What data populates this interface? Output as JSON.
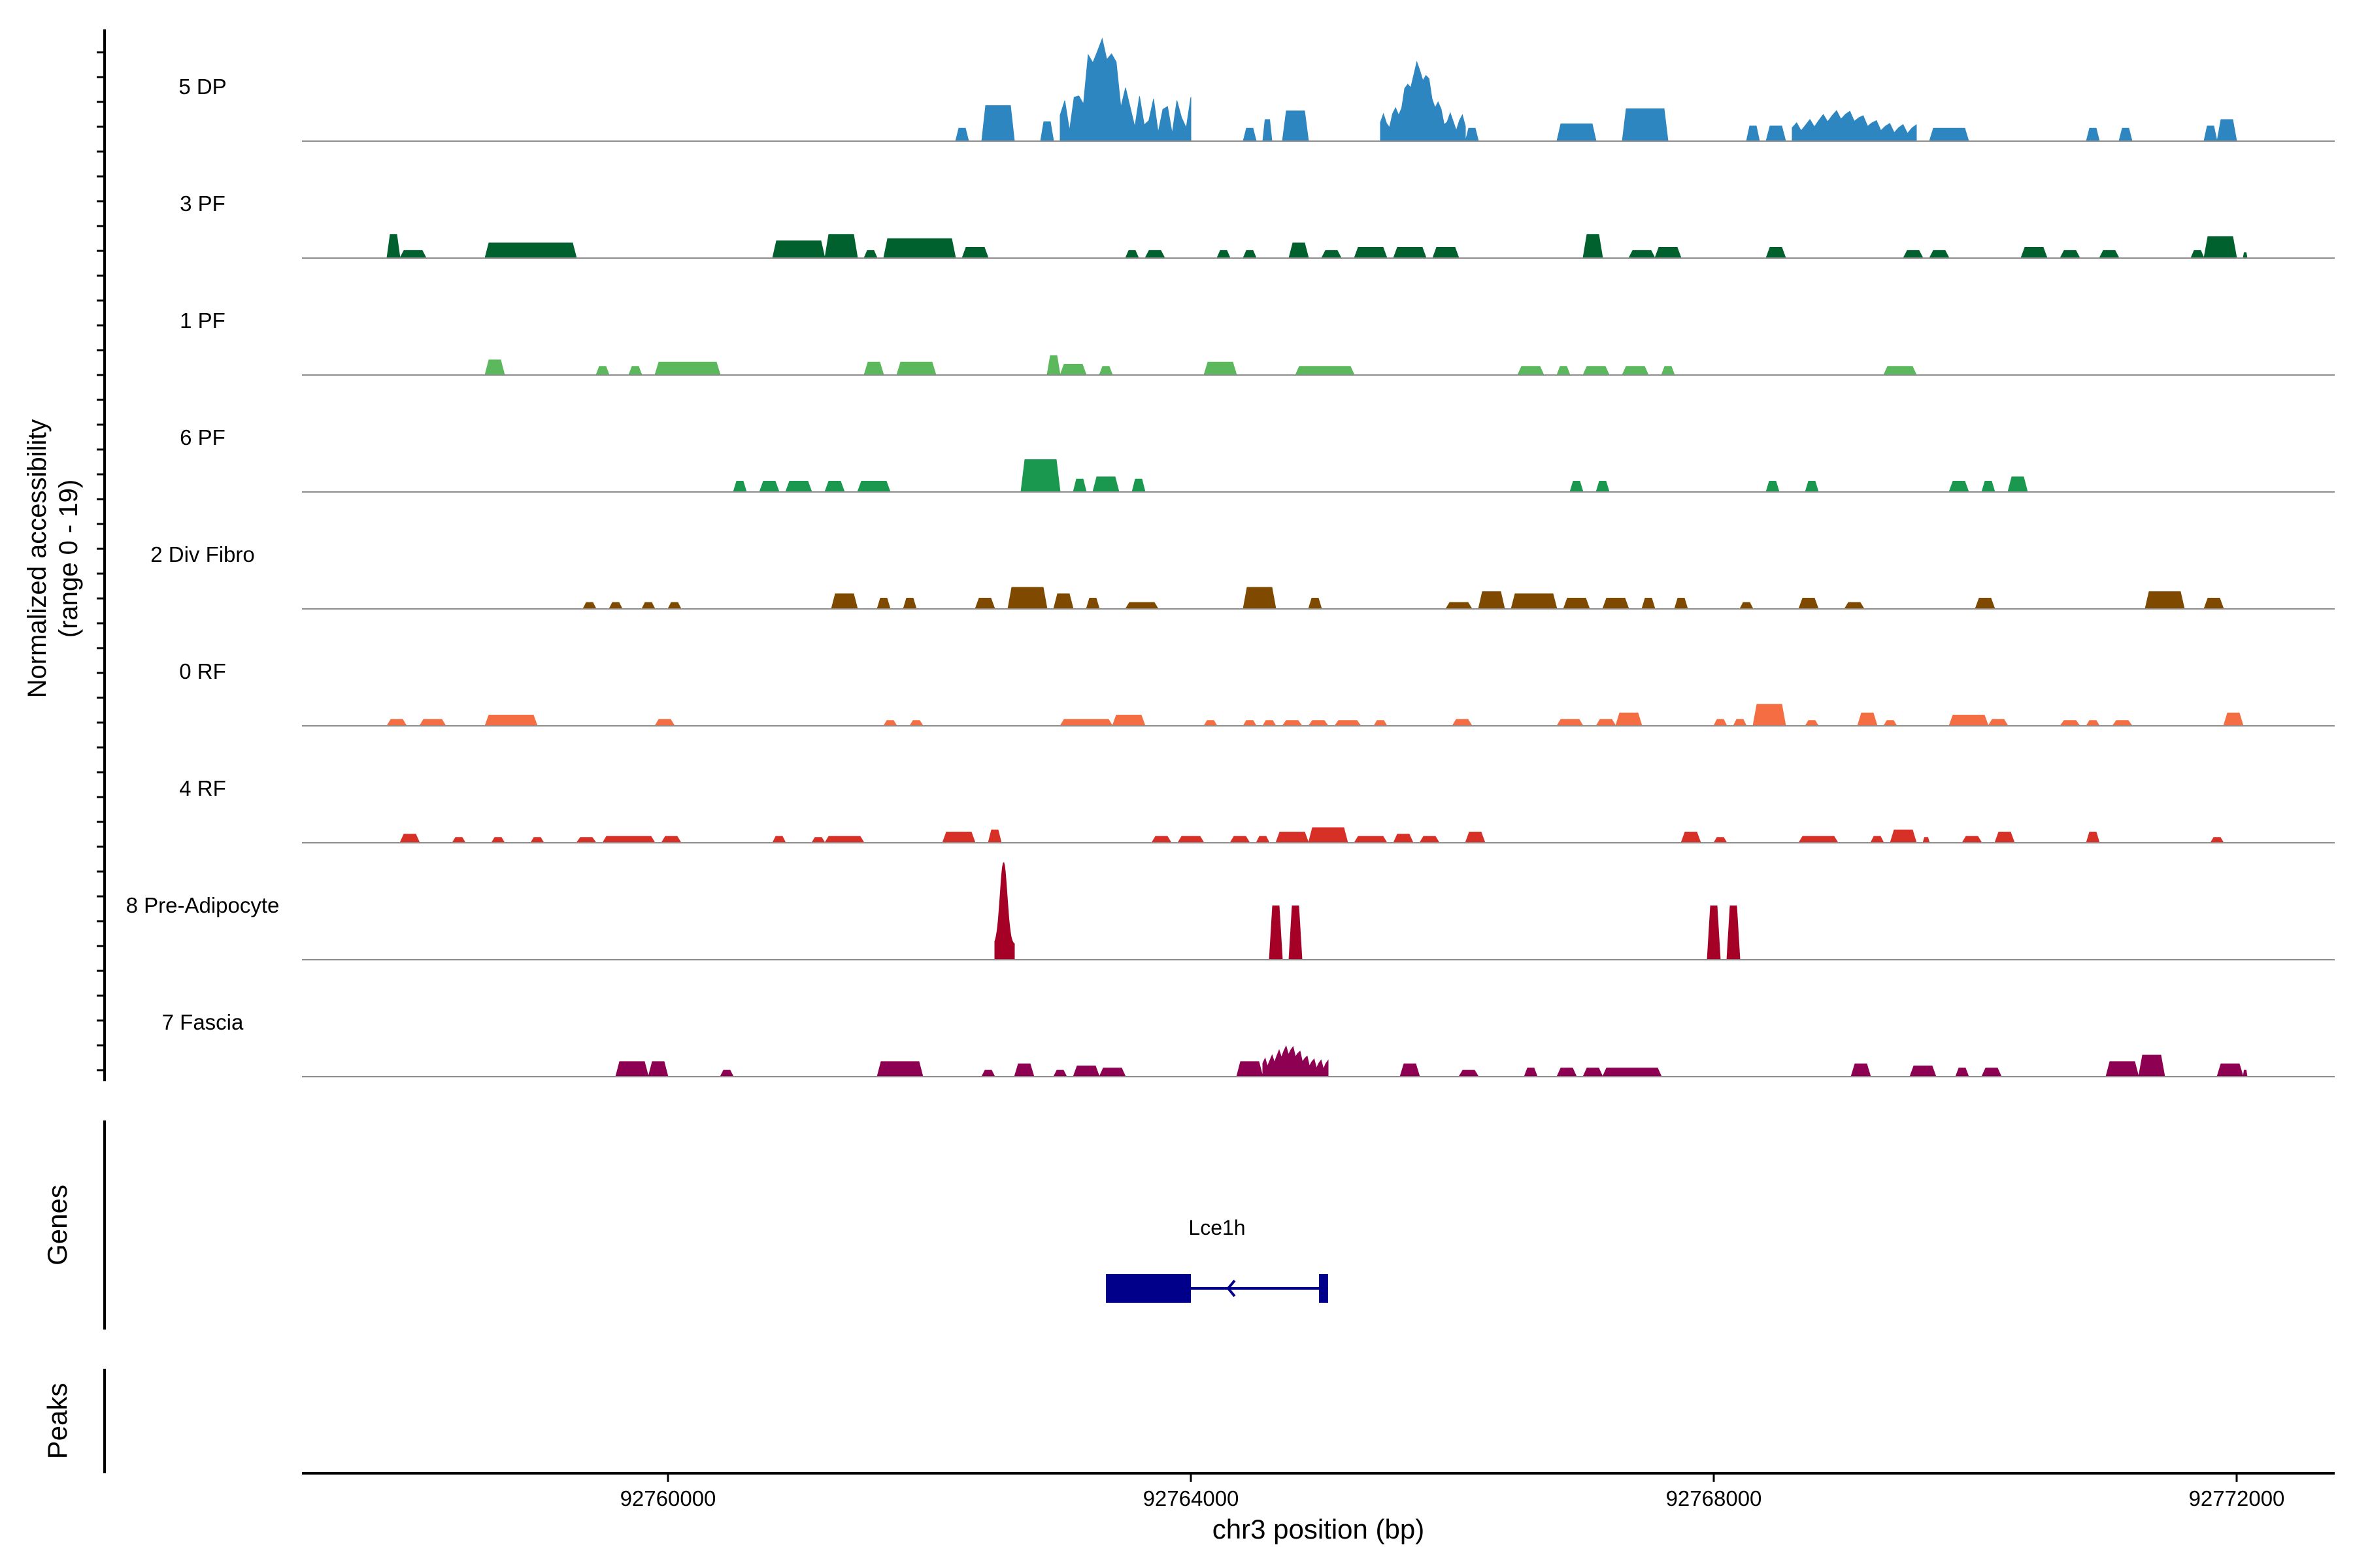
{
  "chart_data": {
    "type": "area",
    "subtype": "genome-coverage-track",
    "ylabel_line1": "Normalized accessibility",
    "ylabel_line2": "(range 0 - 19)",
    "y_range": [
      0,
      19
    ],
    "xlabel": "chr3 position (bp)",
    "xlim": [
      92757200,
      92772750
    ],
    "x_ticks": [
      92760000,
      92764000,
      92768000,
      92772000
    ],
    "x_tick_labels": [
      "92760000",
      "92764000",
      "92768000",
      "92772000"
    ],
    "tracks": [
      {
        "name": "5 DP",
        "color": "#2E86C1",
        "segments": [
          [
            92762200,
            92762300,
            0.12
          ],
          [
            92762400,
            92762650,
            0.33
          ],
          [
            92762850,
            92762950,
            0.18
          ],
          [
            92763000,
            92764000,
            0.0,
            "peak"
          ],
          [
            92764400,
            92764500,
            0.12
          ],
          [
            92764550,
            92764620,
            0.2
          ],
          [
            92764700,
            92764900,
            0.28
          ],
          [
            92765450,
            92766100,
            0.0,
            "peak2"
          ],
          [
            92766100,
            92766200,
            0.12
          ],
          [
            92766800,
            92767100,
            0.16
          ],
          [
            92767300,
            92767650,
            0.3
          ],
          [
            92768250,
            92768350,
            0.14
          ],
          [
            92768400,
            92768550,
            0.14
          ],
          [
            92768600,
            92769550,
            0.0,
            "cluster"
          ],
          [
            92769650,
            92769950,
            0.12
          ],
          [
            92770850,
            92770950,
            0.12
          ],
          [
            92771100,
            92771200,
            0.12
          ],
          [
            92771750,
            92771850,
            0.14
          ],
          [
            92771850,
            92772000,
            0.2
          ]
        ]
      },
      {
        "name": "3 PF",
        "color": "#00612E",
        "segments": [
          [
            92757850,
            92757950,
            0.22
          ],
          [
            92757950,
            92758150,
            0.07
          ],
          [
            92758600,
            92759300,
            0.14
          ],
          [
            92760800,
            92761200,
            0.16
          ],
          [
            92761200,
            92761450,
            0.22
          ],
          [
            92761500,
            92761600,
            0.07
          ],
          [
            92761650,
            92762200,
            0.18
          ],
          [
            92762250,
            92762450,
            0.1
          ],
          [
            92763500,
            92763600,
            0.07
          ],
          [
            92763650,
            92763800,
            0.07
          ],
          [
            92764200,
            92764300,
            0.07
          ],
          [
            92764400,
            92764500,
            0.07
          ],
          [
            92764750,
            92764900,
            0.14
          ],
          [
            92765000,
            92765150,
            0.07
          ],
          [
            92765250,
            92765500,
            0.1
          ],
          [
            92765550,
            92765800,
            0.1
          ],
          [
            92765850,
            92766050,
            0.1
          ],
          [
            92767000,
            92767150,
            0.22
          ],
          [
            92767350,
            92767550,
            0.07
          ],
          [
            92767550,
            92767750,
            0.1
          ],
          [
            92768400,
            92768550,
            0.1
          ],
          [
            92769450,
            92769600,
            0.07
          ],
          [
            92769650,
            92769800,
            0.07
          ],
          [
            92770350,
            92770550,
            0.1
          ],
          [
            92770650,
            92770800,
            0.07
          ],
          [
            92770950,
            92771100,
            0.07
          ],
          [
            92771650,
            92771750,
            0.07
          ],
          [
            92771750,
            92772000,
            0.2
          ],
          [
            92772050,
            92772080,
            0.05
          ]
        ]
      },
      {
        "name": "1 PF",
        "color": "#5CB85C",
        "segments": [
          [
            92758600,
            92758750,
            0.14
          ],
          [
            92759450,
            92759550,
            0.08
          ],
          [
            92759700,
            92759800,
            0.08
          ],
          [
            92759900,
            92760400,
            0.12
          ],
          [
            92761500,
            92761650,
            0.12
          ],
          [
            92761750,
            92762050,
            0.12
          ],
          [
            92762900,
            92763000,
            0.18
          ],
          [
            92763000,
            92763200,
            0.1
          ],
          [
            92763300,
            92763400,
            0.08
          ],
          [
            92764100,
            92764350,
            0.12
          ],
          [
            92764800,
            92765250,
            0.08
          ],
          [
            92766500,
            92766700,
            0.08
          ],
          [
            92766800,
            92766900,
            0.08
          ],
          [
            92767000,
            92767200,
            0.08
          ],
          [
            92767300,
            92767500,
            0.08
          ],
          [
            92767600,
            92767700,
            0.08
          ],
          [
            92769300,
            92769550,
            0.08
          ]
        ]
      },
      {
        "name": "6 PF",
        "color": "#1A9850",
        "segments": [
          [
            92760500,
            92760600,
            0.1
          ],
          [
            92760700,
            92760850,
            0.1
          ],
          [
            92760900,
            92761100,
            0.1
          ],
          [
            92761200,
            92761350,
            0.1
          ],
          [
            92761450,
            92761700,
            0.1
          ],
          [
            92762700,
            92763000,
            0.3
          ],
          [
            92763100,
            92763200,
            0.12
          ],
          [
            92763250,
            92763450,
            0.14
          ],
          [
            92763550,
            92763650,
            0.12
          ],
          [
            92766900,
            92767000,
            0.1
          ],
          [
            92767100,
            92767200,
            0.1
          ],
          [
            92768400,
            92768500,
            0.1
          ],
          [
            92768700,
            92768800,
            0.1
          ],
          [
            92769800,
            92769950,
            0.1
          ],
          [
            92770050,
            92770150,
            0.1
          ],
          [
            92770250,
            92770400,
            0.14
          ]
        ]
      },
      {
        "name": "2 Div Fibro",
        "color": "#7F4A00",
        "segments": [
          [
            92759350,
            92759450,
            0.06
          ],
          [
            92759550,
            92759650,
            0.06
          ],
          [
            92759800,
            92759900,
            0.06
          ],
          [
            92760000,
            92760100,
            0.06
          ],
          [
            92761250,
            92761450,
            0.14
          ],
          [
            92761600,
            92761700,
            0.1
          ],
          [
            92761800,
            92761900,
            0.1
          ],
          [
            92762350,
            92762500,
            0.1
          ],
          [
            92762600,
            92762900,
            0.2
          ],
          [
            92762950,
            92763100,
            0.14
          ],
          [
            92763200,
            92763300,
            0.1
          ],
          [
            92763500,
            92763750,
            0.06
          ],
          [
            92764400,
            92764650,
            0.2
          ],
          [
            92764900,
            92765000,
            0.1
          ],
          [
            92765950,
            92766150,
            0.06
          ],
          [
            92766200,
            92766400,
            0.16
          ],
          [
            92766450,
            92766800,
            0.14
          ],
          [
            92766850,
            92767050,
            0.1
          ],
          [
            92767150,
            92767350,
            0.1
          ],
          [
            92767450,
            92767550,
            0.1
          ],
          [
            92767700,
            92767800,
            0.1
          ],
          [
            92768200,
            92768300,
            0.06
          ],
          [
            92768650,
            92768800,
            0.1
          ],
          [
            92769000,
            92769150,
            0.06
          ],
          [
            92770000,
            92770150,
            0.1
          ],
          [
            92771300,
            92771600,
            0.16
          ],
          [
            92771750,
            92771900,
            0.1
          ]
        ]
      },
      {
        "name": "0 RF",
        "color": "#F46D43",
        "segments": [
          [
            92757850,
            92758000,
            0.06
          ],
          [
            92758100,
            92758300,
            0.06
          ],
          [
            92758600,
            92759000,
            0.1
          ],
          [
            92759900,
            92760050,
            0.06
          ],
          [
            92761650,
            92761750,
            0.05
          ],
          [
            92761850,
            92761950,
            0.05
          ],
          [
            92763000,
            92763400,
            0.06
          ],
          [
            92763400,
            92763650,
            0.1
          ],
          [
            92764100,
            92764200,
            0.05
          ],
          [
            92764400,
            92764500,
            0.05
          ],
          [
            92764550,
            92764650,
            0.05
          ],
          [
            92764700,
            92764850,
            0.05
          ],
          [
            92764900,
            92765050,
            0.05
          ],
          [
            92765100,
            92765300,
            0.05
          ],
          [
            92765400,
            92765500,
            0.05
          ],
          [
            92766000,
            92766150,
            0.06
          ],
          [
            92766800,
            92767000,
            0.06
          ],
          [
            92767100,
            92767250,
            0.06
          ],
          [
            92767250,
            92767450,
            0.12
          ],
          [
            92768000,
            92768100,
            0.06
          ],
          [
            92768150,
            92768250,
            0.06
          ],
          [
            92768300,
            92768550,
            0.2
          ],
          [
            92768700,
            92768800,
            0.05
          ],
          [
            92769100,
            92769250,
            0.12
          ],
          [
            92769300,
            92769400,
            0.05
          ],
          [
            92769800,
            92770100,
            0.1
          ],
          [
            92770100,
            92770250,
            0.06
          ],
          [
            92770650,
            92770800,
            0.05
          ],
          [
            92770850,
            92770950,
            0.05
          ],
          [
            92771050,
            92771200,
            0.05
          ],
          [
            92771900,
            92772050,
            0.12
          ]
        ]
      },
      {
        "name": "4 RF",
        "color": "#D73027",
        "segments": [
          [
            92757950,
            92758100,
            0.08
          ],
          [
            92758350,
            92758450,
            0.05
          ],
          [
            92758650,
            92758750,
            0.05
          ],
          [
            92758950,
            92759050,
            0.05
          ],
          [
            92759300,
            92759450,
            0.05
          ],
          [
            92759500,
            92759900,
            0.06
          ],
          [
            92759950,
            92760100,
            0.06
          ],
          [
            92760800,
            92760900,
            0.06
          ],
          [
            92761100,
            92761200,
            0.05
          ],
          [
            92761200,
            92761500,
            0.06
          ],
          [
            92762100,
            92762350,
            0.1
          ],
          [
            92762450,
            92762550,
            0.12
          ],
          [
            92763700,
            92763850,
            0.06
          ],
          [
            92763900,
            92764100,
            0.06
          ],
          [
            92764300,
            92764450,
            0.06
          ],
          [
            92764500,
            92764600,
            0.06
          ],
          [
            92764650,
            92764900,
            0.1
          ],
          [
            92764900,
            92765200,
            0.14
          ],
          [
            92765250,
            92765500,
            0.06
          ],
          [
            92765550,
            92765700,
            0.08
          ],
          [
            92765750,
            92765900,
            0.06
          ],
          [
            92766100,
            92766250,
            0.1
          ],
          [
            92767750,
            92767900,
            0.1
          ],
          [
            92768000,
            92768100,
            0.05
          ],
          [
            92768650,
            92768950,
            0.06
          ],
          [
            92769200,
            92769300,
            0.06
          ],
          [
            92769350,
            92769550,
            0.12
          ],
          [
            92769600,
            92769650,
            0.05
          ],
          [
            92769900,
            92770050,
            0.06
          ],
          [
            92770150,
            92770300,
            0.1
          ],
          [
            92770850,
            92770950,
            0.1
          ],
          [
            92771800,
            92771900,
            0.05
          ]
        ]
      },
      {
        "name": "8 Pre-Adipocyte",
        "color": "#A50026",
        "segments": [
          [
            92762500,
            92762650,
            0.0,
            "spike"
          ],
          [
            92764600,
            92764700,
            0.5
          ],
          [
            92764750,
            92764850,
            0.5
          ],
          [
            92767950,
            92768050,
            0.5
          ],
          [
            92768100,
            92768200,
            0.5
          ]
        ]
      },
      {
        "name": "7 Fascia",
        "color": "#8E0152",
        "segments": [
          [
            92759600,
            92759850,
            0.14
          ],
          [
            92759850,
            92760000,
            0.14
          ],
          [
            92760400,
            92760500,
            0.06
          ],
          [
            92761600,
            92761950,
            0.14
          ],
          [
            92762400,
            92762500,
            0.06
          ],
          [
            92762650,
            92762800,
            0.12
          ],
          [
            92762950,
            92763050,
            0.06
          ],
          [
            92763100,
            92763300,
            0.1
          ],
          [
            92763300,
            92763500,
            0.08
          ],
          [
            92764350,
            92764550,
            0.14
          ],
          [
            92764550,
            92765050,
            0.0,
            "cluster"
          ],
          [
            92765600,
            92765750,
            0.12
          ],
          [
            92766050,
            92766200,
            0.06
          ],
          [
            92766550,
            92766650,
            0.08
          ],
          [
            92766800,
            92766950,
            0.08
          ],
          [
            92767000,
            92767150,
            0.08
          ],
          [
            92767150,
            92767600,
            0.08
          ],
          [
            92769050,
            92769200,
            0.12
          ],
          [
            92769500,
            92769700,
            0.1
          ],
          [
            92769850,
            92769950,
            0.08
          ],
          [
            92770050,
            92770200,
            0.08
          ],
          [
            92771000,
            92771250,
            0.14
          ],
          [
            92771250,
            92771450,
            0.2
          ],
          [
            92771850,
            92772050,
            0.12
          ],
          [
            92772050,
            92772080,
            0.06
          ]
        ]
      }
    ],
    "genes": {
      "panel_label": "Genes",
      "items": [
        {
          "name": "Lce1h",
          "strand": "-",
          "start": 92763350,
          "end": 92765050,
          "exons": [
            [
              92763350,
              92764000
            ],
            [
              92764980,
              92765050
            ]
          ]
        }
      ]
    },
    "peaks": {
      "panel_label": "Peaks",
      "items": []
    }
  }
}
